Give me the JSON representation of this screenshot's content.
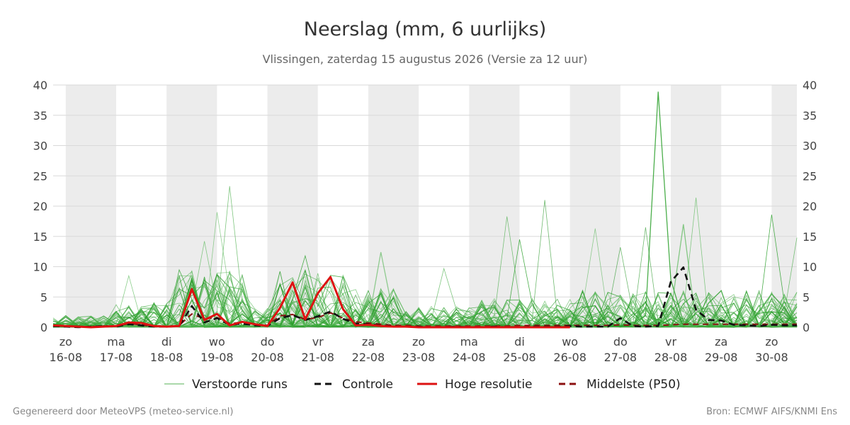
{
  "chart_data": {
    "type": "line",
    "title": "Neerslag (mm, 6 uurlijks)",
    "subtitle": "Vlissingen, zaterdag 15 augustus 2026 (Versie za 12 uur)",
    "ylim": [
      0,
      40
    ],
    "y_ticks": [
      0,
      5,
      10,
      15,
      20,
      25,
      30,
      35,
      40
    ],
    "xlim_days": [
      -0.25,
      14.5
    ],
    "x_day_labels": [
      {
        "day": "zo",
        "date": "16-08"
      },
      {
        "day": "ma",
        "date": "17-08"
      },
      {
        "day": "di",
        "date": "18-08"
      },
      {
        "day": "wo",
        "date": "19-08"
      },
      {
        "day": "do",
        "date": "20-08"
      },
      {
        "day": "vr",
        "date": "21-08"
      },
      {
        "day": "za",
        "date": "22-08"
      },
      {
        "day": "zo",
        "date": "23-08"
      },
      {
        "day": "ma",
        "date": "24-08"
      },
      {
        "day": "di",
        "date": "25-08"
      },
      {
        "day": "wo",
        "date": "26-08"
      },
      {
        "day": "do",
        "date": "27-08"
      },
      {
        "day": "vr",
        "date": "28-08"
      },
      {
        "day": "za",
        "date": "29-08"
      },
      {
        "day": "zo",
        "date": "30-08"
      }
    ],
    "shaded_night_bands": [
      [
        0,
        1
      ],
      [
        2,
        3
      ],
      [
        4,
        5
      ],
      [
        6,
        7
      ],
      [
        8,
        9
      ],
      [
        10,
        11
      ],
      [
        12,
        13
      ],
      [
        14,
        14.5
      ]
    ],
    "grid": true,
    "legend_position": "bottom",
    "legend": [
      {
        "label": "Verstoorde runs",
        "style": "thin",
        "color": "#2ca02c"
      },
      {
        "label": "Controle",
        "style": "dashed",
        "color": "#111111"
      },
      {
        "label": "Hoge resolutie",
        "style": "solid",
        "color": "#dd1111"
      },
      {
        "label": "Middelste (P50)",
        "style": "dashed",
        "color": "#8b1010"
      }
    ],
    "series": [
      {
        "name": "Hoge resolutie",
        "color": "#dd1111",
        "x": [
          -0.25,
          0,
          0.25,
          0.5,
          0.75,
          1,
          1.25,
          1.5,
          1.75,
          2,
          2.25,
          2.5,
          2.75,
          3,
          3.25,
          3.5,
          3.75,
          4,
          4.25,
          4.5,
          4.75,
          5,
          5.25,
          5.5,
          5.75,
          6,
          6.25,
          6.5,
          6.75,
          7,
          7.25,
          7.5,
          7.75,
          8,
          8.25,
          8.5,
          8.75,
          9,
          9.25,
          9.5,
          9.75,
          10
        ],
        "y": [
          0.3,
          0.2,
          0.1,
          0,
          0.1,
          0.2,
          0.8,
          0.7,
          0.2,
          0.1,
          0.2,
          6.3,
          1.2,
          2.2,
          0.3,
          0.9,
          0.5,
          0.2,
          3.2,
          7.4,
          1.3,
          5.6,
          8.3,
          3.0,
          0.3,
          0.4,
          0.2,
          0.1,
          0.1,
          0,
          0,
          0,
          0,
          0,
          0,
          0,
          0,
          0,
          0,
          0,
          0,
          0
        ]
      },
      {
        "name": "Controle",
        "color": "#111111",
        "x": [
          -0.25,
          0,
          0.25,
          0.5,
          0.75,
          1,
          1.25,
          1.5,
          1.75,
          2,
          2.25,
          2.5,
          2.75,
          3,
          3.25,
          3.5,
          3.75,
          4,
          4.25,
          4.5,
          4.75,
          5,
          5.25,
          5.5,
          5.75,
          6,
          6.25,
          6.5,
          6.75,
          7,
          7.25,
          7.5,
          7.75,
          8,
          8.25,
          8.5,
          8.75,
          9,
          9.25,
          9.5,
          9.75,
          10,
          10.25,
          10.5,
          10.75,
          11,
          11.25,
          11.5,
          11.75,
          12,
          12.25,
          12.5,
          12.75,
          13,
          13.25,
          13.5,
          13.75,
          14,
          14.25,
          14.5
        ],
        "y": [
          0.2,
          0.1,
          0,
          0.1,
          0.2,
          0.1,
          0.5,
          0.3,
          0.1,
          0.1,
          0.2,
          3.5,
          0.8,
          1.5,
          0.4,
          0.6,
          0.3,
          0.2,
          1.5,
          2.0,
          1.2,
          1.8,
          2.6,
          1.4,
          0.6,
          0.5,
          0.3,
          0.2,
          0.1,
          0.1,
          0,
          0,
          0.1,
          0,
          0,
          0.1,
          0,
          0,
          0.1,
          0.1,
          0.1,
          0.2,
          0.1,
          0.1,
          0.1,
          1.5,
          0.2,
          0.1,
          0.2,
          7.5,
          9.9,
          2.9,
          1.2,
          1.1,
          0.4,
          0.3,
          0.2,
          0.4,
          0.3,
          0.3
        ]
      },
      {
        "name": "Middelste (P50)",
        "color": "#8b1010",
        "x": [
          -0.25,
          0,
          0.25,
          0.5,
          0.75,
          1,
          1.25,
          1.5,
          1.75,
          2,
          2.25,
          2.5,
          2.75,
          3,
          3.25,
          3.5,
          3.75,
          4,
          4.25,
          4.5,
          4.75,
          5,
          5.25,
          5.5,
          5.75,
          6,
          6.25,
          6.5,
          6.75,
          7,
          7.25,
          7.5,
          7.75,
          8,
          8.25,
          8.5,
          8.75,
          9,
          9.25,
          9.5,
          9.75,
          10,
          10.25,
          10.5,
          10.75,
          11,
          11.25,
          11.5,
          11.75,
          12,
          12.25,
          12.5,
          12.75,
          13,
          13.25,
          13.5,
          13.75,
          14,
          14.25,
          14.5
        ],
        "y": [
          0.2,
          0.2,
          0.1,
          0.1,
          0.2,
          0.2,
          0.6,
          0.4,
          0.1,
          0.1,
          0.3,
          2.2,
          1.4,
          1.6,
          0.6,
          0.8,
          0.5,
          0.3,
          1.9,
          2.1,
          1.3,
          1.6,
          2.4,
          1.5,
          0.9,
          0.7,
          0.5,
          0.3,
          0.3,
          0.2,
          0.2,
          0.2,
          0.2,
          0.2,
          0.2,
          0.2,
          0.2,
          0.3,
          0.3,
          0.3,
          0.3,
          0.3,
          0.3,
          0.3,
          0.3,
          0.4,
          0.3,
          0.3,
          0.3,
          0.4,
          0.5,
          0.5,
          0.5,
          0.5,
          0.5,
          0.5,
          0.5,
          0.5,
          0.5,
          0.5
        ]
      }
    ],
    "ensemble_note_values": {
      "notable_peaks": [
        {
          "x": 11.75,
          "y": 38.9
        },
        {
          "x": 3.25,
          "y": 23.3
        },
        {
          "x": 12.5,
          "y": 21.4
        },
        {
          "x": 9.5,
          "y": 21.0
        },
        {
          "x": 3.0,
          "y": 19.0
        },
        {
          "x": 14.0,
          "y": 18.6
        },
        {
          "x": 8.75,
          "y": 18.3
        },
        {
          "x": 12.25,
          "y": 17.0
        },
        {
          "x": 11.5,
          "y": 16.5
        },
        {
          "x": 10.5,
          "y": 16.3
        },
        {
          "x": 9.0,
          "y": 14.5
        },
        {
          "x": 14.5,
          "y": 14.8
        },
        {
          "x": 2.75,
          "y": 14.2
        },
        {
          "x": 11.0,
          "y": 13.2
        },
        {
          "x": 6.25,
          "y": 12.4
        },
        {
          "x": 4.75,
          "y": 11.8
        },
        {
          "x": 7.5,
          "y": 9.7
        },
        {
          "x": 1.25,
          "y": 8.5
        }
      ]
    }
  },
  "footer": {
    "left": "Gegenereerd door MeteoVPS (meteo-service.nl)",
    "right": "Bron: ECMWF AIFS/KNMI Ens"
  }
}
